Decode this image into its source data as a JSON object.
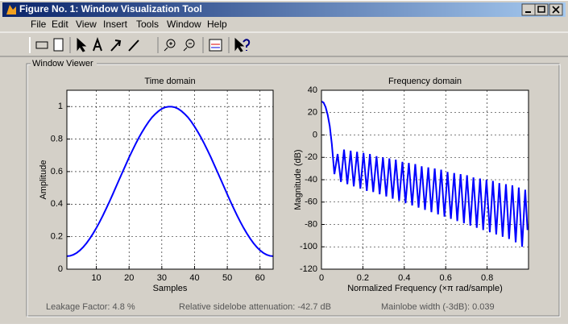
{
  "window": {
    "title": "Figure No. 1: Window Visualization Tool"
  },
  "menu": [
    "File",
    "Edit",
    "View",
    "Insert",
    "Tools",
    "Window",
    "Help"
  ],
  "panel": {
    "title": "Window Viewer"
  },
  "status": [
    "Leakage Factor: 4.8 %",
    "Relative sidelobe attenuation: -42.7 dB",
    "Mainlobe width (-3dB): 0.039"
  ],
  "chart_data": [
    {
      "type": "line",
      "title": "Time domain",
      "xlabel": "Samples",
      "ylabel": "Amplitude",
      "color": "#0000ff",
      "grid": true,
      "x": [
        1,
        2,
        3,
        4,
        5,
        6,
        7,
        8,
        9,
        10,
        11,
        12,
        13,
        14,
        15,
        16,
        17,
        18,
        19,
        20,
        21,
        22,
        23,
        24,
        25,
        26,
        27,
        28,
        29,
        30,
        31,
        32,
        33,
        34,
        35,
        36,
        37,
        38,
        39,
        40,
        41,
        42,
        43,
        44,
        45,
        46,
        47,
        48,
        49,
        50,
        51,
        52,
        53,
        54,
        55,
        56,
        57,
        58,
        59,
        60,
        61,
        62,
        63,
        64
      ],
      "values": [
        0.08,
        0.082,
        0.089,
        0.1,
        0.116,
        0.136,
        0.16,
        0.188,
        0.219,
        0.253,
        0.29,
        0.33,
        0.372,
        0.415,
        0.46,
        0.506,
        0.552,
        0.597,
        0.642,
        0.687,
        0.729,
        0.77,
        0.809,
        0.844,
        0.877,
        0.907,
        0.933,
        0.954,
        0.972,
        0.986,
        0.995,
        0.999,
        0.999,
        0.995,
        0.986,
        0.972,
        0.954,
        0.933,
        0.907,
        0.877,
        0.844,
        0.809,
        0.77,
        0.729,
        0.687,
        0.642,
        0.597,
        0.552,
        0.506,
        0.46,
        0.415,
        0.372,
        0.33,
        0.29,
        0.253,
        0.219,
        0.188,
        0.16,
        0.136,
        0.116,
        0.1,
        0.089,
        0.082,
        0.08
      ],
      "xlim": [
        1,
        64
      ],
      "ylim": [
        0,
        1.1
      ],
      "xticks": [
        10,
        20,
        30,
        40,
        50,
        60
      ],
      "yticks": [
        0,
        0.2,
        0.4,
        0.6,
        0.8,
        1
      ]
    },
    {
      "type": "line",
      "title": "Frequency domain",
      "xlabel": "Normalized Frequency  (×π rad/sample)",
      "ylabel": "Magnitude (dB)",
      "color": "#0000ff",
      "grid": true,
      "x": [
        0,
        0.01,
        0.02,
        0.03,
        0.04,
        0.05,
        0.0625,
        0.078,
        0.094,
        0.109,
        0.125,
        0.141,
        0.156,
        0.172,
        0.188,
        0.203,
        0.219,
        0.234,
        0.25,
        0.266,
        0.281,
        0.297,
        0.313,
        0.328,
        0.344,
        0.359,
        0.375,
        0.391,
        0.406,
        0.422,
        0.438,
        0.453,
        0.469,
        0.484,
        0.5,
        0.516,
        0.531,
        0.547,
        0.563,
        0.578,
        0.594,
        0.609,
        0.625,
        0.641,
        0.656,
        0.672,
        0.688,
        0.703,
        0.719,
        0.734,
        0.75,
        0.766,
        0.781,
        0.797,
        0.813,
        0.828,
        0.844,
        0.859,
        0.875,
        0.891,
        0.906,
        0.922,
        0.938,
        0.953,
        0.969,
        0.984,
        0.995
      ],
      "values": [
        30,
        29,
        25,
        18,
        8,
        -8,
        -35,
        -17,
        -42,
        -13,
        -44,
        -14,
        -46,
        -15,
        -48,
        -16,
        -50,
        -17,
        -51,
        -19,
        -53,
        -20,
        -55,
        -21,
        -57,
        -22,
        -59,
        -24,
        -61,
        -25,
        -63,
        -26,
        -65,
        -28,
        -67,
        -29,
        -69,
        -30,
        -71,
        -31,
        -73,
        -33,
        -75,
        -34,
        -77,
        -35,
        -79,
        -36,
        -81,
        -38,
        -83,
        -39,
        -85,
        -40,
        -87,
        -41,
        -89,
        -43,
        -91,
        -44,
        -93,
        -45,
        -96,
        -47,
        -100,
        -49,
        -85
      ],
      "xlim": [
        0,
        1
      ],
      "ylim": [
        -120,
        40
      ],
      "xticks": [
        0,
        0.2,
        0.4,
        0.6,
        0.8
      ],
      "yticks": [
        -120,
        -100,
        -80,
        -60,
        -40,
        -20,
        0,
        20,
        40
      ]
    }
  ]
}
